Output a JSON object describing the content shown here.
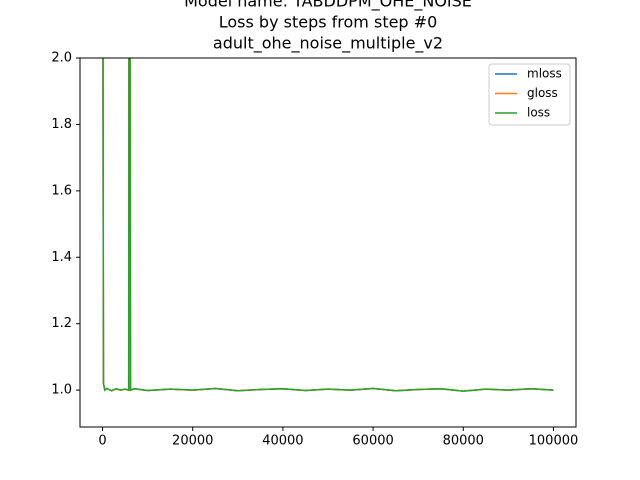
{
  "chart_data": {
    "type": "line",
    "title": [
      "Model name: TABDDPM_OHE_NOISE",
      "Loss by steps from step #0",
      "adult_ohe_noise_multiple_v2"
    ],
    "x": [
      0,
      200,
      500,
      1000,
      2000,
      3000,
      4000,
      5000,
      5800,
      5900,
      6000,
      6200,
      7000,
      10000,
      15000,
      20000,
      25000,
      30000,
      35000,
      40000,
      45000,
      50000,
      55000,
      60000,
      65000,
      70000,
      75000,
      80000,
      85000,
      90000,
      95000,
      100000
    ],
    "series": [
      {
        "name": "mloss",
        "color": "#1f77b4",
        "values": [
          3.0,
          1.02,
          1.0,
          1.005,
          0.998,
          1.004,
          1.0,
          1.003,
          1.0,
          3.0,
          3.0,
          1.0,
          1.004,
          0.999,
          1.003,
          1.0,
          1.005,
          0.998,
          1.002,
          1.004,
          0.999,
          1.003,
          1.0,
          1.005,
          0.998,
          1.002,
          1.004,
          0.997,
          1.003,
          1.0,
          1.004,
          1.0
        ]
      },
      {
        "name": "gloss",
        "color": "#ff7f0e",
        "values": [
          3.0,
          1.02,
          1.0,
          1.005,
          0.998,
          1.004,
          1.0,
          1.003,
          1.0,
          3.0,
          3.0,
          1.0,
          1.004,
          0.999,
          1.003,
          1.0,
          1.005,
          0.998,
          1.002,
          1.004,
          0.999,
          1.003,
          1.0,
          1.005,
          0.998,
          1.002,
          1.004,
          0.997,
          1.003,
          1.0,
          1.004,
          1.0
        ]
      },
      {
        "name": "loss",
        "color": "#2ca02c",
        "values": [
          3.0,
          1.02,
          1.0,
          1.005,
          0.998,
          1.004,
          1.0,
          1.003,
          1.0,
          3.0,
          3.0,
          1.0,
          1.004,
          0.999,
          1.003,
          1.0,
          1.005,
          0.998,
          1.002,
          1.004,
          0.999,
          1.003,
          1.0,
          1.005,
          0.998,
          1.002,
          1.004,
          0.997,
          1.003,
          1.0,
          1.004,
          1.0
        ]
      }
    ],
    "xlim": [
      -5000,
      105000
    ],
    "ylim": [
      0.889,
      2.0
    ],
    "xticks": [
      0,
      20000,
      40000,
      60000,
      80000,
      100000
    ],
    "yticks": [
      {
        "value": 1.0,
        "label": "1.0"
      },
      1.2,
      1.4,
      1.6,
      1.8,
      {
        "value": 2.0,
        "label": "2.0"
      }
    ],
    "grid": false,
    "legend": "upper right"
  }
}
